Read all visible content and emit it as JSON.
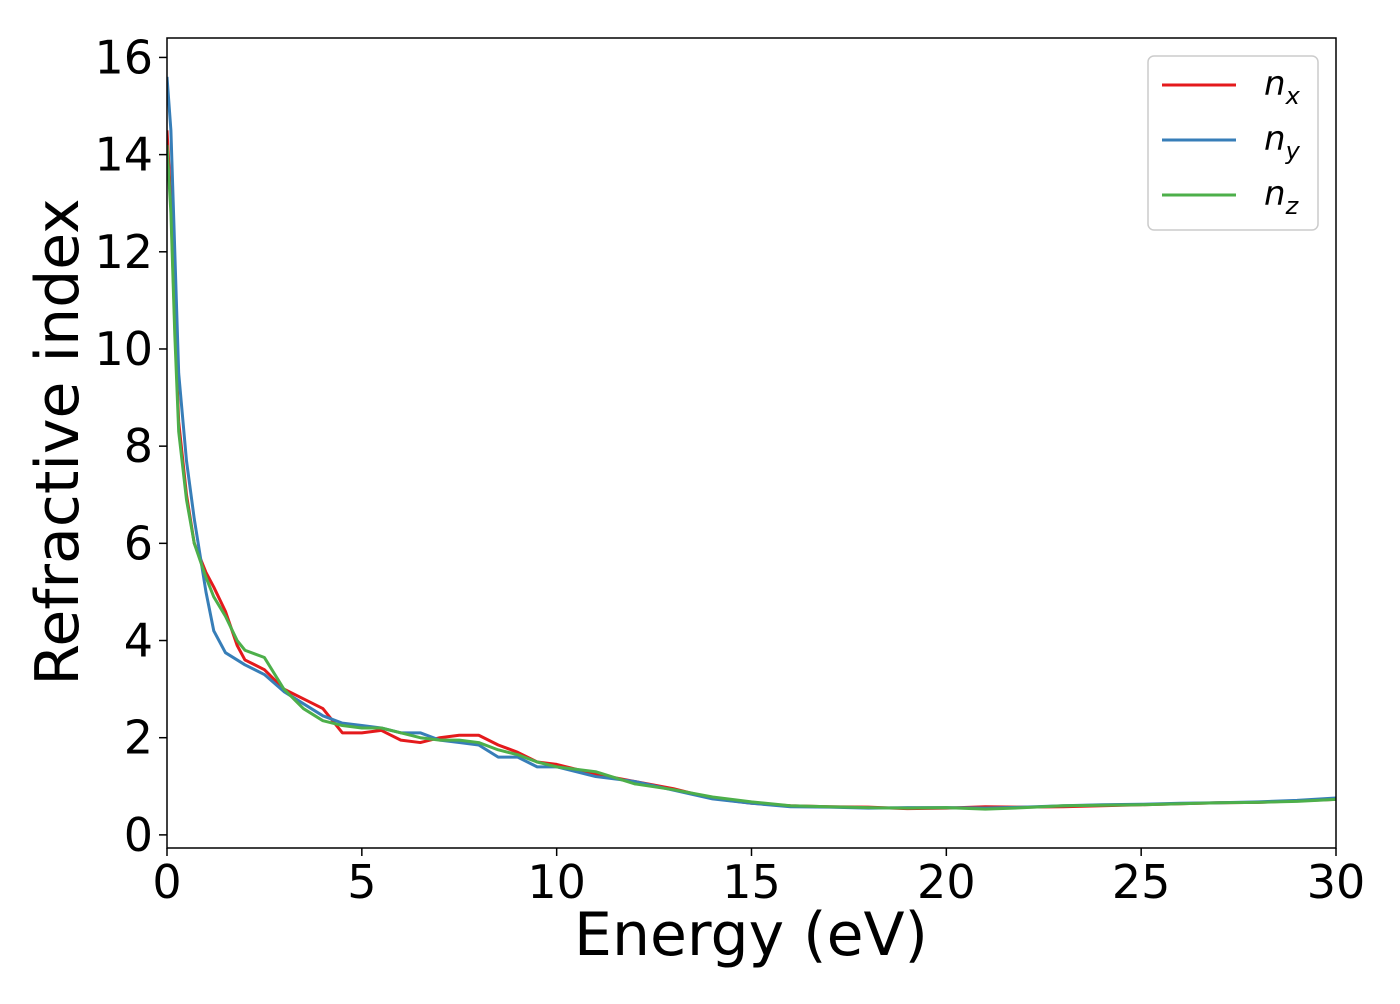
{
  "chart_data": {
    "type": "line",
    "x_label": "Energy (eV)",
    "y_label": "Refractive index",
    "x": [
      0,
      0.1,
      0.2,
      0.3,
      0.5,
      0.7,
      1,
      1.2,
      1.5,
      1.8,
      2,
      2.5,
      3,
      3.5,
      4,
      4.5,
      5,
      5.5,
      6,
      6.5,
      7,
      7.5,
      8,
      8.5,
      9,
      9.5,
      10,
      11,
      12,
      13,
      14,
      15,
      16,
      17,
      18,
      19,
      20,
      21,
      22,
      23,
      24,
      25,
      26,
      27,
      28,
      29,
      30
    ],
    "series": [
      {
        "name": "nx",
        "color": "#e41a1c",
        "values": [
          14.5,
          13,
          10.5,
          8.5,
          7,
          6,
          5.4,
          5.1,
          4.6,
          3.9,
          3.6,
          3.4,
          3.0,
          2.8,
          2.6,
          2.1,
          2.1,
          2.15,
          1.95,
          1.9,
          2.0,
          2.05,
          2.05,
          1.85,
          1.7,
          1.5,
          1.45,
          1.25,
          1.1,
          0.95,
          0.75,
          0.65,
          0.6,
          0.58,
          0.57,
          0.54,
          0.55,
          0.58,
          0.57,
          0.58,
          0.6,
          0.62,
          0.64,
          0.66,
          0.67,
          0.7,
          0.73
        ]
      },
      {
        "name": "ny",
        "color": "#377eb8",
        "values": [
          15.6,
          14.5,
          12,
          9.5,
          7.7,
          6.5,
          5.0,
          4.2,
          3.75,
          3.6,
          3.5,
          3.3,
          2.95,
          2.7,
          2.45,
          2.3,
          2.25,
          2.2,
          2.1,
          2.1,
          1.95,
          1.9,
          1.85,
          1.6,
          1.6,
          1.4,
          1.4,
          1.2,
          1.1,
          0.92,
          0.74,
          0.65,
          0.58,
          0.57,
          0.55,
          0.56,
          0.56,
          0.55,
          0.57,
          0.6,
          0.62,
          0.63,
          0.65,
          0.66,
          0.68,
          0.71,
          0.76
        ]
      },
      {
        "name": "nz",
        "color": "#4daf4a",
        "values": [
          14.2,
          12.8,
          10.3,
          8.3,
          6.9,
          6.0,
          5.3,
          4.9,
          4.5,
          4.0,
          3.8,
          3.65,
          3.0,
          2.6,
          2.35,
          2.25,
          2.2,
          2.2,
          2.1,
          2.0,
          1.95,
          1.95,
          1.9,
          1.75,
          1.65,
          1.5,
          1.4,
          1.3,
          1.05,
          0.93,
          0.78,
          0.68,
          0.6,
          0.58,
          0.56,
          0.55,
          0.56,
          0.53,
          0.56,
          0.6,
          0.61,
          0.62,
          0.64,
          0.66,
          0.67,
          0.69,
          0.73
        ]
      }
    ],
    "xlim": [
      0,
      30
    ],
    "ylim": [
      -0.27,
      16.4
    ],
    "xticks": [
      0,
      5,
      10,
      15,
      20,
      25,
      30
    ],
    "yticks": [
      0,
      2,
      4,
      6,
      8,
      10,
      12,
      14,
      16
    ],
    "legend": "upper right",
    "grid": false
  }
}
